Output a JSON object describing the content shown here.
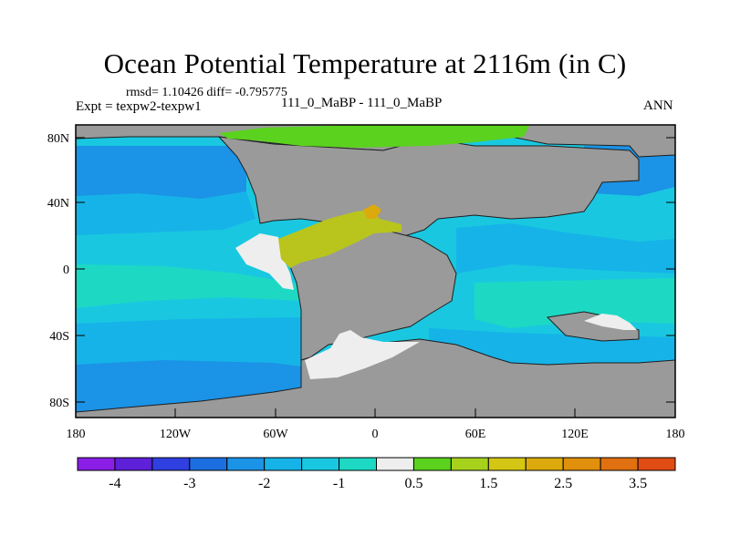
{
  "title": "Ocean Potential Temperature at 2116m (in C)",
  "stats_line": "rmsd= 1.10426 diff= -0.795775",
  "experiment_line": "Expt = texpw2-texpw1",
  "case_line": "111_0_MaBP - 111_0_MaBP",
  "season": "ANN",
  "x_ticks": [
    "180",
    "120W",
    "60W",
    "0",
    "60E",
    "120E",
    "180"
  ],
  "y_ticks": [
    "80N",
    "40N",
    "0",
    "40S",
    "80S"
  ],
  "colorbar": {
    "colors": [
      "#8a1ee6",
      "#5e20d8",
      "#2f3fe0",
      "#1c6fe0",
      "#1b93e6",
      "#16b3e8",
      "#19c8e0",
      "#1dd9c4",
      "#eeeeee",
      "#5ad21e",
      "#a6d21c",
      "#d4c614",
      "#dcaa0c",
      "#e0900c",
      "#e07010",
      "#e04c14"
    ],
    "labels": [
      "-4",
      "-3",
      "-2",
      "-1",
      "0.5",
      "1.5",
      "2.5",
      "3.5"
    ]
  },
  "colors": {
    "land": "#9a9a9a",
    "deep_cold": "#1b93e6",
    "cold": "#16b3e8",
    "cool": "#19c8e0",
    "mild": "#1dd9c4",
    "neutral": "#eeeeee",
    "warm_green": "#5ad21e",
    "warm_yellow": "#b9c51c",
    "hot_orange": "#dcaa0c"
  }
}
